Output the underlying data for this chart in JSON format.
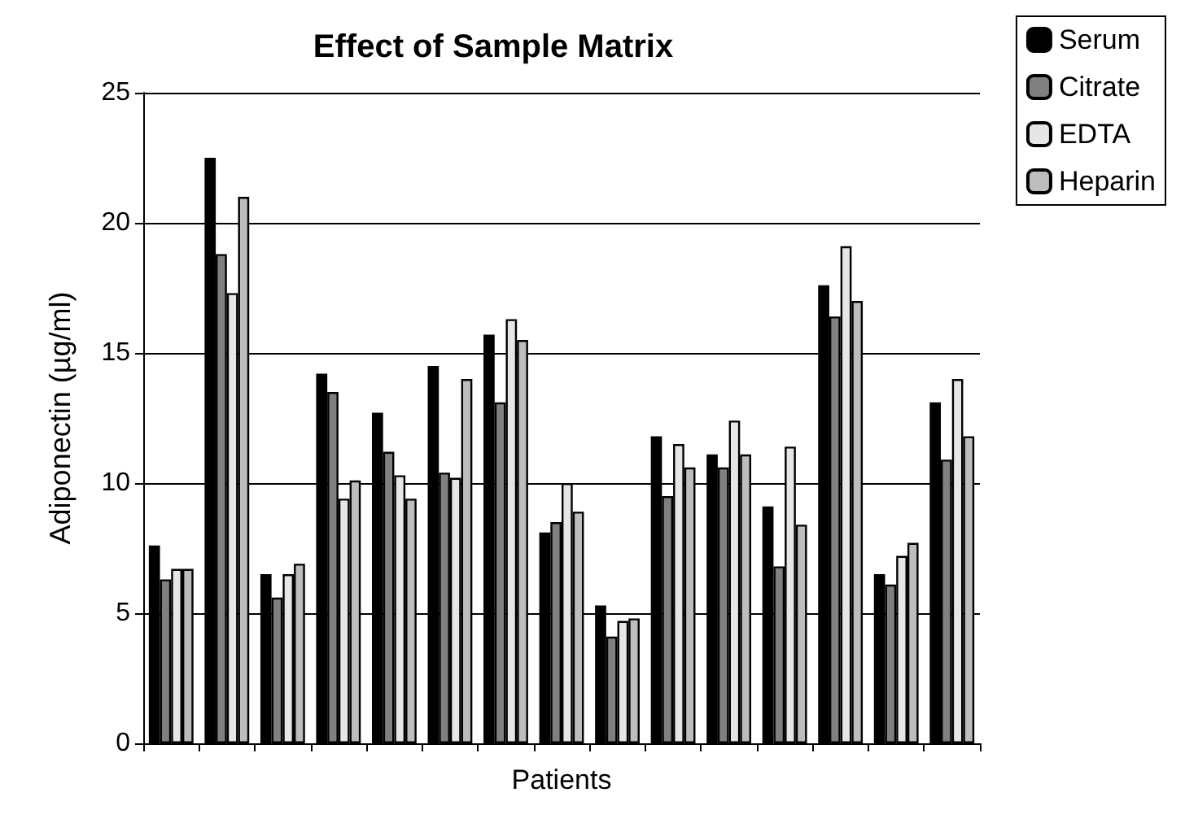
{
  "chart_data": {
    "type": "bar",
    "title": "Effect of Sample Matrix",
    "xlabel": "Patients",
    "ylabel": "Adiponectin (µg/ml)",
    "categories": [
      null,
      null,
      null,
      null,
      null,
      null,
      null,
      null,
      null,
      null,
      null,
      null,
      null,
      null,
      null
    ],
    "series": [
      {
        "name": "Serum",
        "color": "#000000",
        "values": [
          7.6,
          22.5,
          6.5,
          14.2,
          12.7,
          14.5,
          15.7,
          8.1,
          5.3,
          11.8,
          11.1,
          9.1,
          17.6,
          6.5,
          13.1
        ]
      },
      {
        "name": "Citrate",
        "color": "#808080",
        "values": [
          6.3,
          18.8,
          5.6,
          13.5,
          11.2,
          10.4,
          13.1,
          8.5,
          4.1,
          9.5,
          10.6,
          6.8,
          16.4,
          6.1,
          10.9
        ]
      },
      {
        "name": "EDTA",
        "color": "#e6e6e6",
        "values": [
          6.7,
          17.3,
          6.5,
          9.4,
          10.3,
          10.2,
          16.3,
          10.0,
          4.7,
          11.5,
          12.4,
          11.4,
          19.1,
          7.2,
          14.0
        ]
      },
      {
        "name": "Heparin",
        "color": "#bdbdbd",
        "values": [
          6.7,
          21.0,
          6.9,
          10.1,
          9.4,
          14.0,
          15.5,
          8.9,
          4.8,
          10.6,
          11.1,
          8.4,
          17.0,
          7.7,
          11.8
        ]
      }
    ],
    "ylim": [
      0,
      25
    ],
    "yticks": [
      0,
      5,
      10,
      15,
      20,
      25
    ],
    "grid": "y",
    "legend": "top right"
  }
}
